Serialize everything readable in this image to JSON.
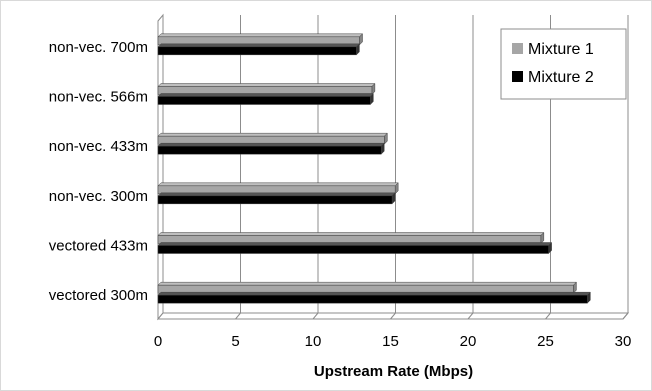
{
  "chart_data": {
    "type": "bar",
    "orientation": "horizontal",
    "style": "3d",
    "title": "",
    "xlabel": "Upstream Rate (Mbps)",
    "ylabel": "",
    "xlim": [
      0,
      30
    ],
    "x_ticks": [
      0,
      5,
      10,
      15,
      20,
      25,
      30
    ],
    "grid": true,
    "legend_position": "top-right",
    "categories": [
      "vectored 300m",
      "vectored 433m",
      "non-vec. 300m",
      "non-vec. 433m",
      "non-vec. 566m",
      "non-vec. 700m"
    ],
    "series": [
      {
        "name": "Mixture 1",
        "color": "#a6a6a6",
        "values": [
          26.8,
          24.7,
          15.3,
          14.6,
          13.8,
          13.0
        ]
      },
      {
        "name": "Mixture 2",
        "color": "#000000",
        "values": [
          27.7,
          25.2,
          15.1,
          14.4,
          13.7,
          12.8
        ]
      }
    ]
  }
}
